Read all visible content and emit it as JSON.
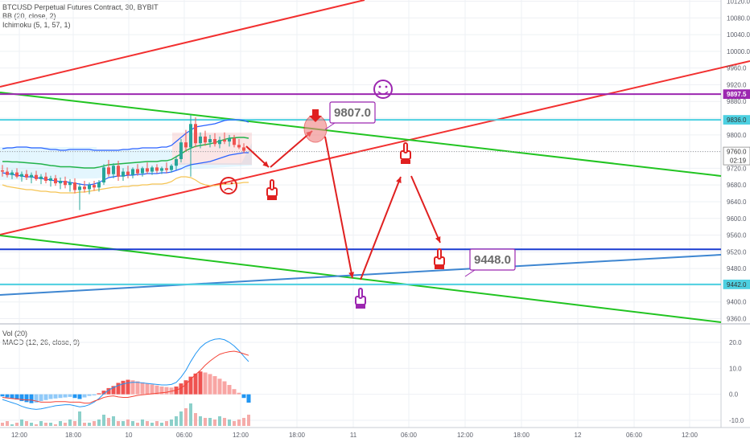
{
  "legend": {
    "main_line1": "BTCUSD Perpetual Futures Contract, 30, BYBIT",
    "main_line2": "BB (20, close, 2)",
    "main_line3": "Ichimoku (5, 1, 57, 1)",
    "sub_line1": "Vol (20)",
    "sub_line2": "MACD (12, 26, close, 9)"
  },
  "chart_data": [
    {
      "type": "candlestick",
      "title": "BTCUSD Perpetual Futures Contract, 30, BYBIT",
      "y_ticks": [
        9360.0,
        9400.0,
        9440.0,
        9480.0,
        9520.0,
        9560.0,
        9600.0,
        9640.0,
        9680.0,
        9720.0,
        9760.0,
        9800.0,
        9840.0,
        9880.0,
        9920.0,
        9960.0,
        10000.0,
        10040.0,
        10080.0,
        10120.0
      ],
      "y_tick_labels": [
        "9360.0",
        "9400.0",
        "9440.0",
        "9480.0",
        "9520.0",
        "9560.0",
        "9600.0",
        "9640.0",
        "9680.0",
        "9720.0",
        "9760.0",
        "9800.0",
        "9840.0",
        "9880.0",
        "9920.0",
        "9960.0",
        "10000.0",
        "10040.0",
        "10080.0",
        "10120.0"
      ],
      "x_tick_labels": [
        "12:00",
        "18:00",
        "10",
        "06:00",
        "12:00",
        "18:00",
        "11",
        "06:00",
        "12:00",
        "18:00",
        "12",
        "06:00",
        "12:00"
      ],
      "ylim": [
        9330,
        10135
      ],
      "price_tags": [
        {
          "label": "9897.5",
          "value": 9897.5,
          "color": "#9c27b0"
        },
        {
          "label": "9836.0",
          "value": 9836.0,
          "color": "#4dd0e1"
        },
        {
          "label": "9760.0",
          "value": 9760.0,
          "color": "#ffffff",
          "time": "02:19"
        },
        {
          "label": "9442.0",
          "value": 9442.0,
          "color": "#4dd0e1"
        }
      ],
      "horizontal_levels": [
        {
          "value": 9897.5,
          "color": "#9c27b0"
        },
        {
          "value": 9836.0,
          "color": "#4dd0e1"
        },
        {
          "value": 9760.0,
          "color": "#9e9e9e"
        },
        {
          "value": 9526.0,
          "color": "#1a3bd1"
        },
        {
          "value": 9442.0,
          "color": "#4dd0e1"
        }
      ],
      "annotations": [
        {
          "text": "9807.0",
          "value": 9807.0
        },
        {
          "text": "9448.0",
          "value": 9448.0
        }
      ],
      "candles": [
        {
          "o": 9715,
          "h": 9728,
          "l": 9700,
          "c": 9712
        },
        {
          "o": 9712,
          "h": 9722,
          "l": 9698,
          "c": 9704
        },
        {
          "o": 9704,
          "h": 9716,
          "l": 9694,
          "c": 9710
        },
        {
          "o": 9710,
          "h": 9720,
          "l": 9696,
          "c": 9700
        },
        {
          "o": 9700,
          "h": 9712,
          "l": 9688,
          "c": 9706
        },
        {
          "o": 9706,
          "h": 9716,
          "l": 9692,
          "c": 9698
        },
        {
          "o": 9698,
          "h": 9710,
          "l": 9684,
          "c": 9704
        },
        {
          "o": 9704,
          "h": 9714,
          "l": 9690,
          "c": 9694
        },
        {
          "o": 9694,
          "h": 9706,
          "l": 9682,
          "c": 9700
        },
        {
          "o": 9700,
          "h": 9710,
          "l": 9684,
          "c": 9690
        },
        {
          "o": 9690,
          "h": 9702,
          "l": 9676,
          "c": 9696
        },
        {
          "o": 9696,
          "h": 9704,
          "l": 9678,
          "c": 9684
        },
        {
          "o": 9684,
          "h": 9698,
          "l": 9670,
          "c": 9690
        },
        {
          "o": 9690,
          "h": 9700,
          "l": 9672,
          "c": 9680
        },
        {
          "o": 9680,
          "h": 9694,
          "l": 9664,
          "c": 9686
        },
        {
          "o": 9686,
          "h": 9696,
          "l": 9660,
          "c": 9668
        },
        {
          "o": 9668,
          "h": 9684,
          "l": 9620,
          "c": 9676
        },
        {
          "o": 9676,
          "h": 9690,
          "l": 9662,
          "c": 9670
        },
        {
          "o": 9670,
          "h": 9686,
          "l": 9658,
          "c": 9680
        },
        {
          "o": 9680,
          "h": 9690,
          "l": 9666,
          "c": 9674
        },
        {
          "o": 9674,
          "h": 9692,
          "l": 9664,
          "c": 9686
        },
        {
          "o": 9686,
          "h": 9730,
          "l": 9680,
          "c": 9722
        },
        {
          "o": 9722,
          "h": 9740,
          "l": 9700,
          "c": 9706
        },
        {
          "o": 9706,
          "h": 9732,
          "l": 9696,
          "c": 9726
        },
        {
          "o": 9726,
          "h": 9738,
          "l": 9690,
          "c": 9700
        },
        {
          "o": 9700,
          "h": 9720,
          "l": 9690,
          "c": 9712
        },
        {
          "o": 9712,
          "h": 9726,
          "l": 9696,
          "c": 9704
        },
        {
          "o": 9704,
          "h": 9722,
          "l": 9696,
          "c": 9718
        },
        {
          "o": 9718,
          "h": 9730,
          "l": 9702,
          "c": 9708
        },
        {
          "o": 9708,
          "h": 9724,
          "l": 9700,
          "c": 9720
        },
        {
          "o": 9720,
          "h": 9734,
          "l": 9706,
          "c": 9712
        },
        {
          "o": 9712,
          "h": 9726,
          "l": 9704,
          "c": 9722
        },
        {
          "o": 9722,
          "h": 9730,
          "l": 9708,
          "c": 9714
        },
        {
          "o": 9714,
          "h": 9724,
          "l": 9706,
          "c": 9720
        },
        {
          "o": 9720,
          "h": 9734,
          "l": 9708,
          "c": 9716
        },
        {
          "o": 9716,
          "h": 9730,
          "l": 9710,
          "c": 9726
        },
        {
          "o": 9726,
          "h": 9750,
          "l": 9716,
          "c": 9742
        },
        {
          "o": 9742,
          "h": 9790,
          "l": 9734,
          "c": 9782
        },
        {
          "o": 9782,
          "h": 9812,
          "l": 9760,
          "c": 9770
        },
        {
          "o": 9770,
          "h": 9848,
          "l": 9700,
          "c": 9826
        },
        {
          "o": 9826,
          "h": 9842,
          "l": 9770,
          "c": 9780
        },
        {
          "o": 9780,
          "h": 9806,
          "l": 9768,
          "c": 9796
        },
        {
          "o": 9796,
          "h": 9810,
          "l": 9774,
          "c": 9782
        },
        {
          "o": 9782,
          "h": 9800,
          "l": 9770,
          "c": 9790
        },
        {
          "o": 9790,
          "h": 9804,
          "l": 9772,
          "c": 9778
        },
        {
          "o": 9778,
          "h": 9796,
          "l": 9768,
          "c": 9788
        },
        {
          "o": 9788,
          "h": 9806,
          "l": 9778,
          "c": 9784
        },
        {
          "o": 9784,
          "h": 9800,
          "l": 9772,
          "c": 9792
        },
        {
          "o": 9792,
          "h": 9800,
          "l": 9770,
          "c": 9776
        },
        {
          "o": 9776,
          "h": 9790,
          "l": 9766,
          "c": 9770
        },
        {
          "o": 9770,
          "h": 9780,
          "l": 9756,
          "c": 9762
        }
      ]
    },
    {
      "type": "bar",
      "title": "MACD (12, 26, close, 9)",
      "y_ticks": [
        20.0,
        10.0,
        0.0,
        -10.0
      ],
      "y_tick_labels": [
        "20.0",
        "10.0",
        "0.0",
        "-10.0"
      ],
      "ylim": [
        -13,
        25
      ],
      "histogram": [
        -0.8,
        -1.2,
        -1.6,
        -2.0,
        -2.6,
        -3.0,
        -3.4,
        -3.2,
        -2.6,
        -2.2,
        -1.8,
        -1.6,
        -1.4,
        -1.2,
        -1.0,
        -1.4,
        -1.8,
        -1.2,
        -0.6,
        -0.4,
        0.4,
        1.4,
        2.4,
        3.2,
        4.4,
        5.2,
        5.6,
        5.4,
        5.0,
        4.6,
        4.2,
        3.8,
        3.4,
        3.0,
        2.8,
        2.6,
        3.0,
        4.2,
        5.4,
        6.8,
        8.0,
        8.8,
        8.4,
        7.8,
        7.0,
        6.0,
        5.0,
        3.6,
        2.0,
        0.6,
        -1.4,
        -3.2
      ],
      "series": [
        {
          "name": "MACD",
          "color": "#2196f3",
          "values": [
            -2,
            -2.6,
            -3.2,
            -3.8,
            -4.6,
            -5.2,
            -5.6,
            -5.8,
            -5.6,
            -5.2,
            -4.8,
            -4.4,
            -4.2,
            -4.0,
            -4.0,
            -4.4,
            -4.8,
            -4.6,
            -4.0,
            -3.0,
            -1.6,
            0.2,
            1.6,
            2.6,
            3.4,
            4.0,
            4.4,
            4.6,
            4.6,
            4.4,
            4.2,
            4.0,
            3.8,
            3.6,
            3.6,
            3.8,
            4.6,
            6.6,
            9.2,
            12.6,
            15.6,
            18.0,
            19.6,
            20.6,
            21.2,
            21.4,
            21.0,
            20.0,
            18.6,
            16.8,
            14.6,
            12.6
          ]
        },
        {
          "name": "Signal",
          "color": "#f44336",
          "values": [
            -1.2,
            -1.4,
            -1.6,
            -1.8,
            -2.0,
            -2.2,
            -2.2,
            -2.6,
            -3.0,
            -3.0,
            -3.0,
            -2.8,
            -2.8,
            -2.8,
            -3.0,
            -3.0,
            -3.0,
            -3.4,
            -3.4,
            -2.6,
            -2.0,
            -1.2,
            -0.8,
            -0.6,
            -1.0,
            -1.2,
            -1.2,
            -0.8,
            -0.4,
            -0.2,
            0.0,
            0.2,
            0.4,
            0.6,
            0.8,
            1.2,
            1.6,
            2.4,
            3.8,
            5.8,
            7.6,
            9.2,
            11.2,
            12.8,
            14.2,
            15.4,
            16.0,
            16.4,
            16.6,
            16.2,
            15.6,
            15.0
          ]
        }
      ]
    }
  ]
}
